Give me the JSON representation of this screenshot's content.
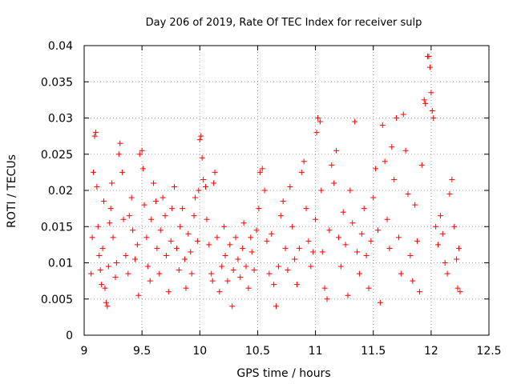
{
  "chart_data": {
    "type": "scatter",
    "title": "Day 206 of 2019, Rate Of TEC Index for receiver sulp",
    "xlabel": "GPS time / hours",
    "ylabel": "ROTI / TECUs",
    "xlim": [
      9,
      12.5
    ],
    "ylim": [
      0,
      0.04
    ],
    "x_ticks": [
      "9",
      "9.5",
      "10",
      "10.5",
      "11",
      "11.5",
      "12",
      "12.5"
    ],
    "y_ticks": [
      "0",
      "0.005",
      "0.01",
      "0.015",
      "0.02",
      "0.025",
      "0.03",
      "0.035",
      "0.04"
    ],
    "grid": true,
    "marker": "+",
    "color": "#ff0000",
    "series": [
      {
        "name": "ROTI",
        "points": [
          [
            9.06,
            0.0085
          ],
          [
            9.07,
            0.0135
          ],
          [
            9.08,
            0.0225
          ],
          [
            9.09,
            0.0275
          ],
          [
            9.1,
            0.028
          ],
          [
            9.11,
            0.0205
          ],
          [
            9.12,
            0.015
          ],
          [
            9.13,
            0.011
          ],
          [
            9.14,
            0.009
          ],
          [
            9.15,
            0.007
          ],
          [
            9.16,
            0.012
          ],
          [
            9.17,
            0.0185
          ],
          [
            9.18,
            0.0065
          ],
          [
            9.19,
            0.0045
          ],
          [
            9.2,
            0.004
          ],
          [
            9.21,
            0.0095
          ],
          [
            9.22,
            0.0155
          ],
          [
            9.23,
            0.0175
          ],
          [
            9.24,
            0.021
          ],
          [
            9.25,
            0.0135
          ],
          [
            9.27,
            0.008
          ],
          [
            9.28,
            0.01
          ],
          [
            9.3,
            0.025
          ],
          [
            9.31,
            0.0265
          ],
          [
            9.33,
            0.0225
          ],
          [
            9.34,
            0.016
          ],
          [
            9.36,
            0.011
          ],
          [
            9.38,
            0.0085
          ],
          [
            9.39,
            0.0165
          ],
          [
            9.41,
            0.019
          ],
          [
            9.42,
            0.0145
          ],
          [
            9.44,
            0.0105
          ],
          [
            9.46,
            0.0125
          ],
          [
            9.47,
            0.0055
          ],
          [
            9.48,
            0.025
          ],
          [
            9.5,
            0.0255
          ],
          [
            9.51,
            0.023
          ],
          [
            9.52,
            0.018
          ],
          [
            9.54,
            0.0135
          ],
          [
            9.55,
            0.0095
          ],
          [
            9.57,
            0.0075
          ],
          [
            9.58,
            0.016
          ],
          [
            9.6,
            0.021
          ],
          [
            9.62,
            0.0185
          ],
          [
            9.63,
            0.012
          ],
          [
            9.65,
            0.0085
          ],
          [
            9.66,
            0.0145
          ],
          [
            9.68,
            0.019
          ],
          [
            9.7,
            0.0165
          ],
          [
            9.71,
            0.011
          ],
          [
            9.73,
            0.006
          ],
          [
            9.75,
            0.013
          ],
          [
            9.76,
            0.0175
          ],
          [
            9.78,
            0.0205
          ],
          [
            9.8,
            0.012
          ],
          [
            9.82,
            0.009
          ],
          [
            9.83,
            0.015
          ],
          [
            9.85,
            0.0175
          ],
          [
            9.87,
            0.0105
          ],
          [
            9.88,
            0.0065
          ],
          [
            9.9,
            0.014
          ],
          [
            9.92,
            0.0115
          ],
          [
            9.93,
            0.0085
          ],
          [
            9.95,
            0.0165
          ],
          [
            9.96,
            0.019
          ],
          [
            9.98,
            0.013
          ],
          [
            9.99,
            0.02
          ],
          [
            10.0,
            0.027
          ],
          [
            10.01,
            0.0275
          ],
          [
            10.02,
            0.0245
          ],
          [
            10.03,
            0.0215
          ],
          [
            10.05,
            0.0205
          ],
          [
            10.06,
            0.016
          ],
          [
            10.08,
            0.0125
          ],
          [
            10.1,
            0.0085
          ],
          [
            10.11,
            0.0075
          ],
          [
            10.12,
            0.021
          ],
          [
            10.13,
            0.0225
          ],
          [
            10.15,
            0.0135
          ],
          [
            10.17,
            0.006
          ],
          [
            10.19,
            0.0095
          ],
          [
            10.21,
            0.015
          ],
          [
            10.22,
            0.011
          ],
          [
            10.24,
            0.0075
          ],
          [
            10.26,
            0.0125
          ],
          [
            10.28,
            0.004
          ],
          [
            10.29,
            0.009
          ],
          [
            10.31,
            0.0135
          ],
          [
            10.33,
            0.0105
          ],
          [
            10.35,
            0.008
          ],
          [
            10.37,
            0.012
          ],
          [
            10.38,
            0.0155
          ],
          [
            10.4,
            0.0095
          ],
          [
            10.42,
            0.0065
          ],
          [
            10.44,
            0.0135
          ],
          [
            10.45,
            0.0115
          ],
          [
            10.47,
            0.009
          ],
          [
            10.49,
            0.0145
          ],
          [
            10.51,
            0.0175
          ],
          [
            10.52,
            0.0225
          ],
          [
            10.54,
            0.023
          ],
          [
            10.56,
            0.02
          ],
          [
            10.58,
            0.013
          ],
          [
            10.6,
            0.0085
          ],
          [
            10.62,
            0.014
          ],
          [
            10.64,
            0.007
          ],
          [
            10.66,
            0.004
          ],
          [
            10.68,
            0.0095
          ],
          [
            10.7,
            0.0165
          ],
          [
            10.72,
            0.0185
          ],
          [
            10.74,
            0.012
          ],
          [
            10.76,
            0.009
          ],
          [
            10.78,
            0.0205
          ],
          [
            10.8,
            0.015
          ],
          [
            10.82,
            0.0105
          ],
          [
            10.84,
            0.007
          ],
          [
            10.86,
            0.012
          ],
          [
            10.88,
            0.0225
          ],
          [
            10.9,
            0.024
          ],
          [
            10.92,
            0.0175
          ],
          [
            10.94,
            0.013
          ],
          [
            10.96,
            0.0095
          ],
          [
            10.98,
            0.0115
          ],
          [
            11.0,
            0.016
          ],
          [
            11.01,
            0.028
          ],
          [
            11.02,
            0.03
          ],
          [
            11.04,
            0.0295
          ],
          [
            11.05,
            0.02
          ],
          [
            11.06,
            0.0115
          ],
          [
            11.08,
            0.0065
          ],
          [
            11.1,
            0.005
          ],
          [
            11.12,
            0.0145
          ],
          [
            11.14,
            0.0235
          ],
          [
            11.16,
            0.021
          ],
          [
            11.18,
            0.0255
          ],
          [
            11.2,
            0.0135
          ],
          [
            11.22,
            0.0095
          ],
          [
            11.24,
            0.017
          ],
          [
            11.26,
            0.0125
          ],
          [
            11.28,
            0.0055
          ],
          [
            11.3,
            0.02
          ],
          [
            11.32,
            0.0155
          ],
          [
            11.34,
            0.0295
          ],
          [
            11.36,
            0.0115
          ],
          [
            11.38,
            0.0085
          ],
          [
            11.4,
            0.014
          ],
          [
            11.42,
            0.0175
          ],
          [
            11.44,
            0.011
          ],
          [
            11.46,
            0.0065
          ],
          [
            11.48,
            0.013
          ],
          [
            11.5,
            0.019
          ],
          [
            11.52,
            0.023
          ],
          [
            11.54,
            0.0145
          ],
          [
            11.56,
            0.0045
          ],
          [
            11.58,
            0.029
          ],
          [
            11.6,
            0.024
          ],
          [
            11.62,
            0.016
          ],
          [
            11.64,
            0.012
          ],
          [
            11.66,
            0.026
          ],
          [
            11.68,
            0.0215
          ],
          [
            11.7,
            0.03
          ],
          [
            11.72,
            0.0135
          ],
          [
            11.74,
            0.0085
          ],
          [
            11.76,
            0.0305
          ],
          [
            11.78,
            0.0255
          ],
          [
            11.8,
            0.0195
          ],
          [
            11.82,
            0.011
          ],
          [
            11.84,
            0.0075
          ],
          [
            11.86,
            0.018
          ],
          [
            11.88,
            0.013
          ],
          [
            11.9,
            0.006
          ],
          [
            11.92,
            0.0235
          ],
          [
            11.94,
            0.0325
          ],
          [
            11.95,
            0.032
          ],
          [
            11.97,
            0.0385
          ],
          [
            11.98,
            0.0385
          ],
          [
            11.99,
            0.037
          ],
          [
            12.0,
            0.0335
          ],
          [
            12.01,
            0.031
          ],
          [
            12.02,
            0.03
          ],
          [
            12.04,
            0.015
          ],
          [
            12.06,
            0.0125
          ],
          [
            12.08,
            0.0165
          ],
          [
            12.1,
            0.014
          ],
          [
            12.12,
            0.01
          ],
          [
            12.14,
            0.0085
          ],
          [
            12.16,
            0.0195
          ],
          [
            12.18,
            0.0215
          ],
          [
            12.2,
            0.015
          ],
          [
            12.22,
            0.0105
          ],
          [
            12.23,
            0.0065
          ],
          [
            12.24,
            0.012
          ],
          [
            12.25,
            0.006
          ]
        ]
      }
    ]
  }
}
